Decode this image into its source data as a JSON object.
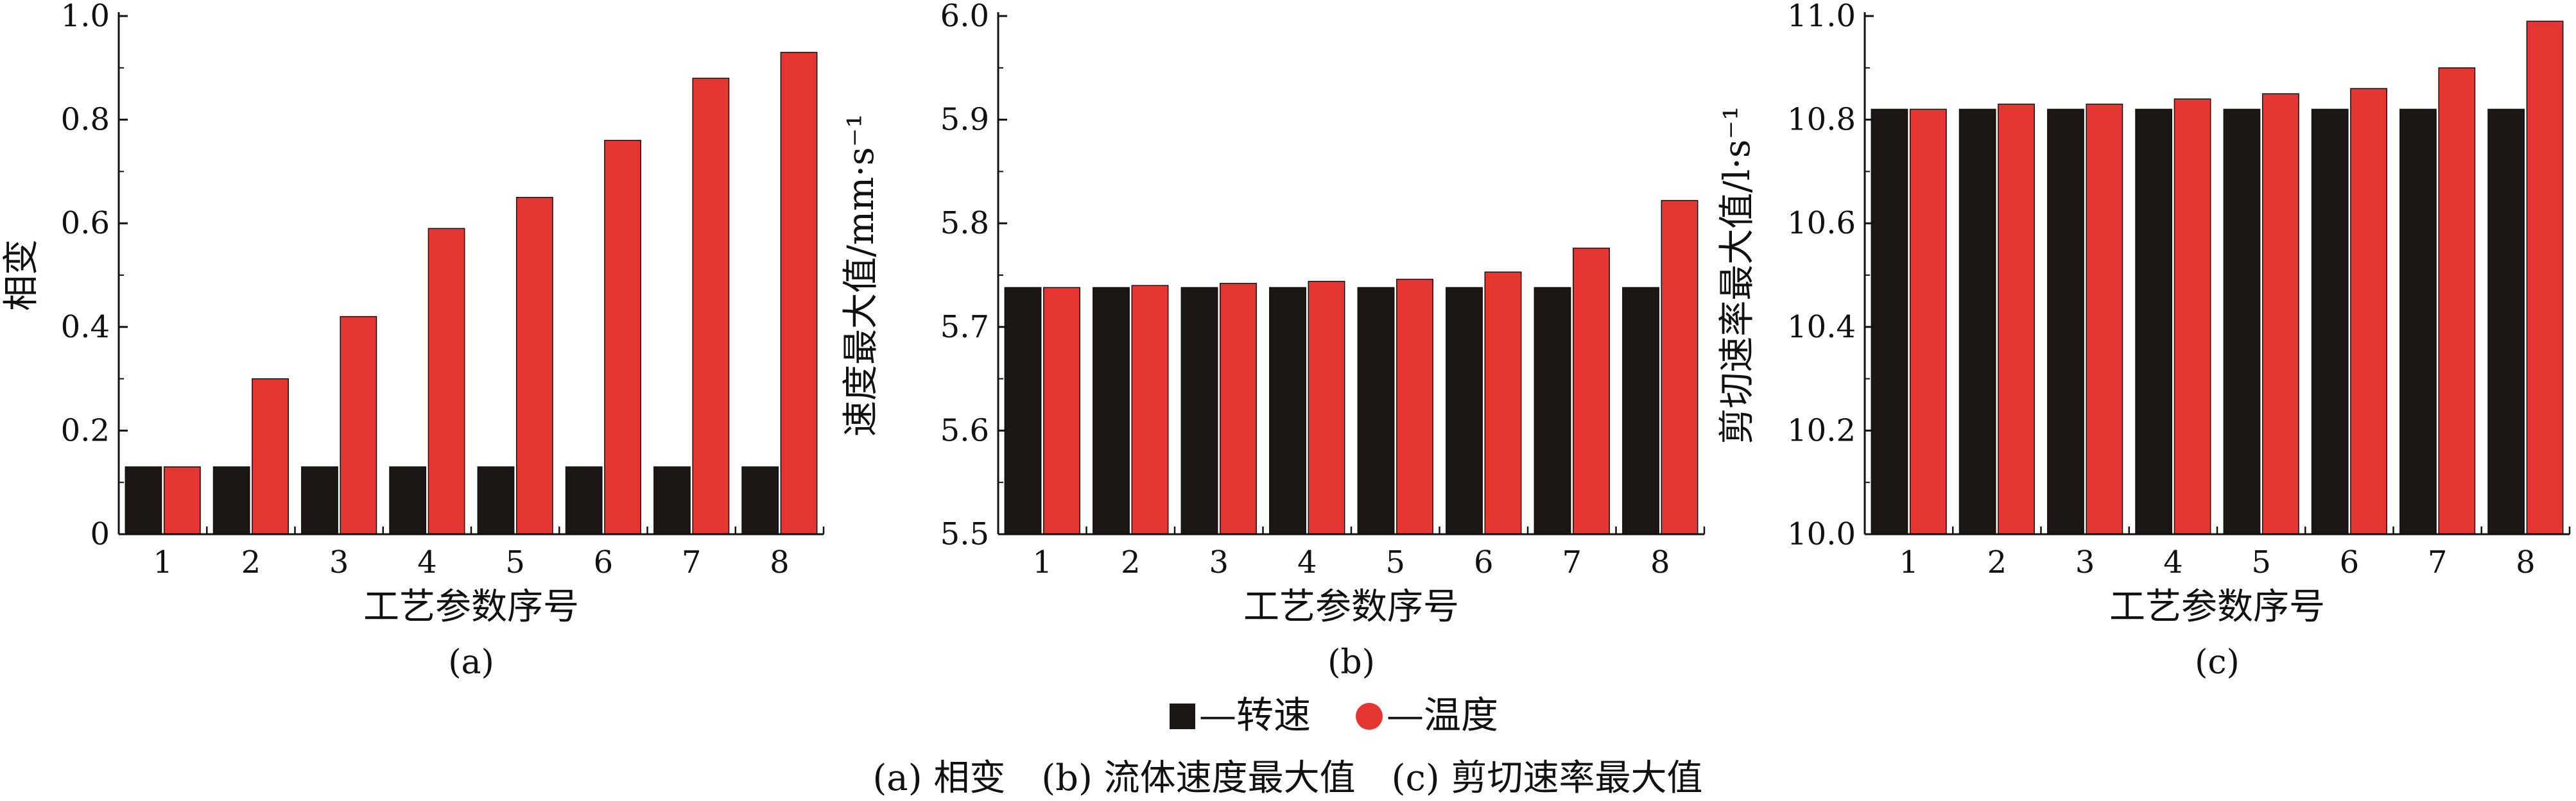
{
  "chart_data": [
    {
      "type": "bar",
      "panel_label": "(a)",
      "ylabel": "相变",
      "xlabel": "工艺参数序号",
      "categories": [
        "1",
        "2",
        "3",
        "4",
        "5",
        "6",
        "7",
        "8"
      ],
      "ylim": [
        0,
        1.0
      ],
      "yticks": [
        "0",
        "0.2",
        "0.4",
        "0.6",
        "0.8",
        "1.0"
      ],
      "series": [
        {
          "name": "转速",
          "values": [
            0.13,
            0.13,
            0.13,
            0.13,
            0.13,
            0.13,
            0.13,
            0.13
          ]
        },
        {
          "name": "温度",
          "values": [
            0.13,
            0.3,
            0.42,
            0.59,
            0.65,
            0.76,
            0.88,
            0.93
          ]
        }
      ]
    },
    {
      "type": "bar",
      "panel_label": "(b)",
      "ylabel": "速度最大值/mm·s⁻¹",
      "xlabel": "工艺参数序号",
      "categories": [
        "1",
        "2",
        "3",
        "4",
        "5",
        "6",
        "7",
        "8"
      ],
      "ylim": [
        5.5,
        6.0
      ],
      "yticks": [
        "5.5",
        "5.6",
        "5.7",
        "5.8",
        "5.9",
        "6.0"
      ],
      "series": [
        {
          "name": "转速",
          "values": [
            5.738,
            5.738,
            5.738,
            5.738,
            5.738,
            5.738,
            5.738,
            5.738
          ]
        },
        {
          "name": "温度",
          "values": [
            5.738,
            5.74,
            5.742,
            5.744,
            5.746,
            5.753,
            5.776,
            5.822
          ]
        }
      ]
    },
    {
      "type": "bar",
      "panel_label": "(c)",
      "ylabel": "剪切速率最大值/l·s⁻¹",
      "xlabel": "工艺参数序号",
      "categories": [
        "1",
        "2",
        "3",
        "4",
        "5",
        "6",
        "7",
        "8"
      ],
      "ylim": [
        10.0,
        11.0
      ],
      "yticks": [
        "10.0",
        "10.2",
        "10.4",
        "10.6",
        "10.8",
        "11.0"
      ],
      "series": [
        {
          "name": "转速",
          "values": [
            10.82,
            10.82,
            10.82,
            10.82,
            10.82,
            10.82,
            10.82,
            10.82
          ]
        },
        {
          "name": "温度",
          "values": [
            10.82,
            10.83,
            10.83,
            10.84,
            10.85,
            10.86,
            10.9,
            10.99
          ]
        }
      ]
    }
  ],
  "colors": {
    "series_speed": "#1c1714",
    "series_temperature": "#e63631",
    "axis": "#111111"
  },
  "legend": {
    "items": [
      {
        "label": "—转速",
        "marker": "square",
        "color": "#1c1714"
      },
      {
        "label": "—温度",
        "marker": "circle",
        "color": "#e63631"
      }
    ]
  },
  "caption": "(a) 相变　(b) 流体速度最大值　(c) 剪切速率最大值"
}
